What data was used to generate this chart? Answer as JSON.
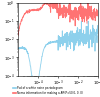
{
  "legend": [
    "Psd of a white noise periodogram",
    "Noma information for making a AR(P=50,0, 0, 0)"
  ],
  "legend_colors": [
    "#87CEEB",
    "#FF6B6B"
  ],
  "background_color": "#ffffff",
  "seed": 7,
  "n_points": 400,
  "xlim": [
    1e-05,
    0.1
  ],
  "ylim": [
    0.0001,
    1.0
  ],
  "xticks": [
    0.0001,
    0.001,
    0.01,
    0.1
  ],
  "yticks": [
    0.0001,
    0.001,
    0.01,
    0.1,
    1.0
  ]
}
